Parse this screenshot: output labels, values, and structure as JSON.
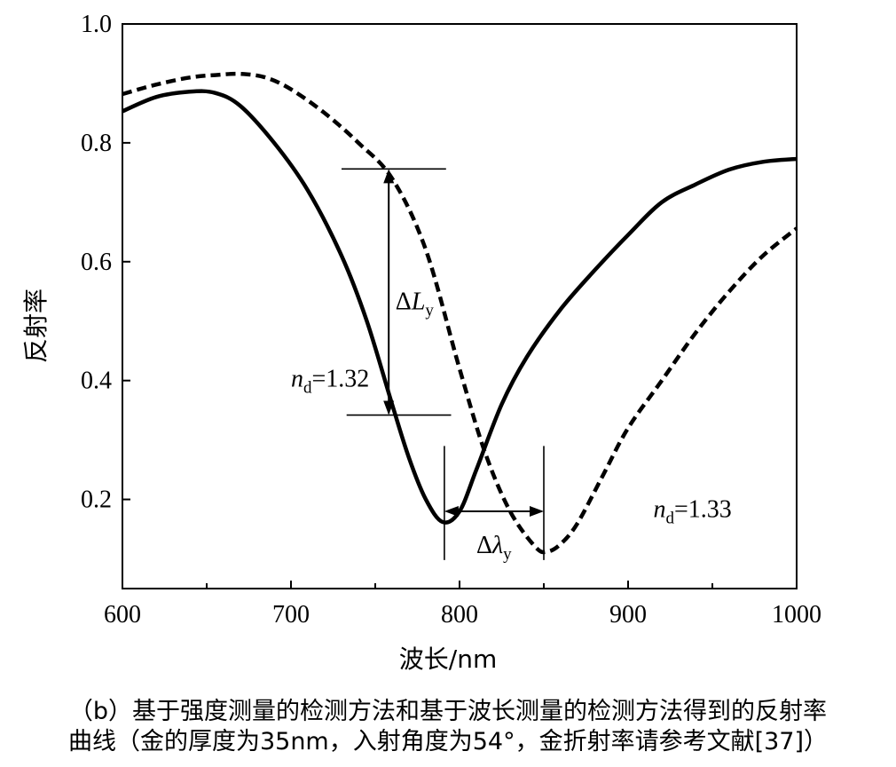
{
  "chart_data": {
    "type": "line",
    "xlabel": "波长/nm",
    "ylabel": "反射率",
    "xlim": [
      600,
      1000
    ],
    "ylim": [
      0.05,
      1.0
    ],
    "x_ticks": [
      600,
      700,
      800,
      900,
      1000
    ],
    "y_ticks": [
      0.2,
      0.4,
      0.6,
      0.8,
      1.0
    ],
    "x_tick_labels": [
      "600",
      "700",
      "800",
      "900",
      "1000"
    ],
    "y_tick_labels": [
      "0.2",
      "0.4",
      "0.6",
      "0.8",
      "1.0"
    ],
    "grid": false,
    "series": [
      {
        "name": "nd=1.32",
        "style": "solid",
        "color": "#000000",
        "x": [
          600,
          620,
          640,
          655,
          670,
          690,
          710,
          730,
          745,
          760,
          770,
          780,
          790,
          800,
          810,
          825,
          840,
          860,
          880,
          900,
          920,
          940,
          960,
          980,
          1000
        ],
        "y": [
          0.853,
          0.877,
          0.886,
          0.884,
          0.862,
          0.8,
          0.72,
          0.61,
          0.5,
          0.36,
          0.27,
          0.2,
          0.162,
          0.18,
          0.25,
          0.36,
          0.44,
          0.52,
          0.585,
          0.645,
          0.7,
          0.73,
          0.755,
          0.768,
          0.773
        ]
      },
      {
        "name": "nd=1.33",
        "style": "dashed",
        "color": "#000000",
        "x": [
          600,
          620,
          640,
          655,
          670,
          685,
          700,
          720,
          740,
          760,
          780,
          800,
          815,
          830,
          845,
          852,
          860,
          870,
          885,
          900,
          920,
          940,
          960,
          980,
          1000
        ],
        "y": [
          0.882,
          0.898,
          0.91,
          0.914,
          0.916,
          0.91,
          0.89,
          0.85,
          0.8,
          0.74,
          0.62,
          0.42,
          0.28,
          0.18,
          0.12,
          0.112,
          0.125,
          0.16,
          0.24,
          0.32,
          0.4,
          0.48,
          0.55,
          0.61,
          0.656
        ]
      }
    ],
    "annotations": [
      {
        "name": "nd-132-label",
        "prefix": "n",
        "sub": "d",
        "text": "=1.32",
        "x": 700,
        "y": 0.39
      },
      {
        "name": "nd-133-label",
        "prefix": "n",
        "sub": "d",
        "text": "=1.33",
        "x": 915,
        "y": 0.17
      },
      {
        "name": "delta-L-label",
        "prefix": "ΔL",
        "sub": "y",
        "text": "",
        "x": 762,
        "y": 0.52
      },
      {
        "name": "delta-lambda-label",
        "prefix": "Δλ",
        "sub": "y",
        "text": "",
        "x": 810,
        "y": 0.11
      }
    ],
    "markers": {
      "delta_L": {
        "x": 758,
        "y_top": 0.756,
        "y_bottom": 0.342,
        "h_top": [
          730,
          792
        ],
        "h_bottom": [
          733,
          795
        ]
      },
      "delta_lambda": {
        "x_left": 791,
        "x_right": 850,
        "y": 0.18,
        "v_left": [
          0.11,
          0.29
        ],
        "v_right": [
          0.11,
          0.29
        ]
      }
    }
  },
  "caption": {
    "line1": "（b）基于强度测量的检测方法和基于波长测量的检测方法得到的反射率",
    "line2": "曲线（金的厚度为35nm，入射角度为54°，金折射率请参考文献[37]）"
  }
}
